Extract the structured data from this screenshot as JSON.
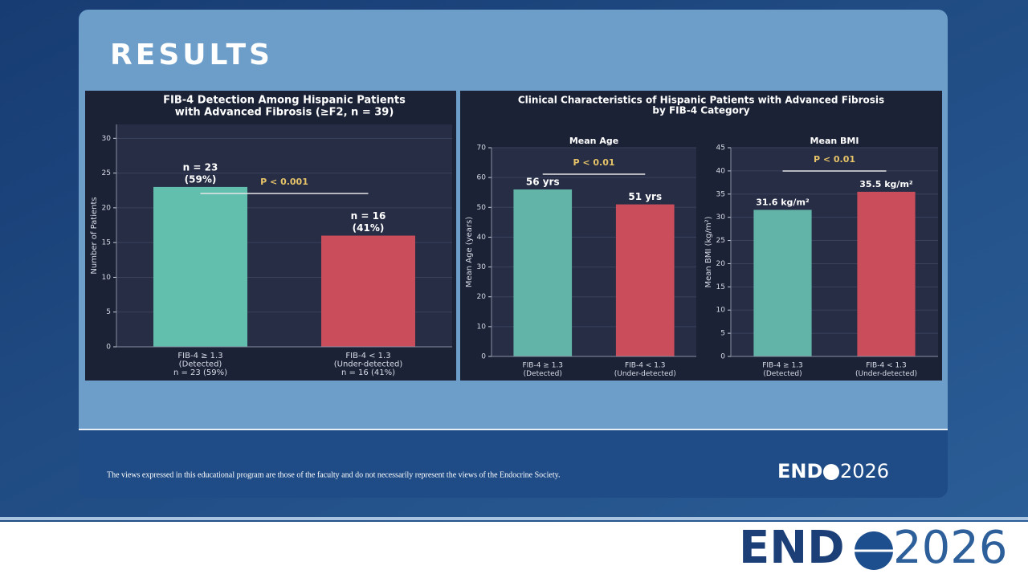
{
  "title": "RESULTS",
  "panel_title": [
    "Clinical Characteristics of Hispanic Patients with Advanced Fibrosis",
    "by FIB-4 Category"
  ],
  "disclaimer": "The views expressed in this educational program are those of the faculty and do not necessarily represent the views of the Endocrine Society.",
  "logo": {
    "left": "END",
    "right": "2026"
  },
  "chart_data": [
    {
      "type": "bar",
      "title": [
        "FIB-4 Detection Among Hispanic Patients",
        "with Advanced Fibrosis (≥F2, n = 39)"
      ],
      "categories": [
        [
          "FIB-4 ≥ 1.3",
          "(Detected)",
          "n = 23 (59%)"
        ],
        [
          "FIB-4 < 1.3",
          "(Under-detected)",
          "n = 16 (41%)"
        ]
      ],
      "values": [
        23,
        16
      ],
      "value_labels": [
        [
          "n = 23",
          "(59%)"
        ],
        [
          "n = 16",
          "(41%)"
        ]
      ],
      "colors": [
        "#62bfae",
        "#c94d5b"
      ],
      "ylabel": "Number of Patients",
      "ylim": [
        0,
        32
      ],
      "yticks": [
        0,
        5,
        10,
        15,
        20,
        25,
        30
      ],
      "grid": true,
      "annotation": "P < 0.001"
    },
    {
      "type": "bar",
      "title": [
        "Mean Age"
      ],
      "categories": [
        [
          "FIB-4 ≥ 1.3",
          "(Detected)"
        ],
        [
          "FIB-4 < 1.3",
          "(Under-detected)"
        ]
      ],
      "values": [
        56,
        51
      ],
      "value_labels": [
        [
          "56 yrs"
        ],
        [
          "51 yrs"
        ]
      ],
      "colors": [
        "#62b4a8",
        "#c94d5b"
      ],
      "ylabel": "Mean Age (years)",
      "ylim": [
        0,
        70
      ],
      "yticks": [
        0,
        10,
        20,
        30,
        40,
        50,
        60,
        70
      ],
      "grid": true,
      "annotation": "P < 0.01"
    },
    {
      "type": "bar",
      "title": [
        "Mean BMI"
      ],
      "categories": [
        [
          "FIB-4 ≥ 1.3",
          "(Detected)"
        ],
        [
          "FIB-4 < 1.3",
          "(Under-detected)"
        ]
      ],
      "values": [
        31.6,
        35.5
      ],
      "value_labels": [
        [
          "31.6 kg/m²"
        ],
        [
          "35.5 kg/m²"
        ]
      ],
      "colors": [
        "#62b4a8",
        "#c94d5b"
      ],
      "ylabel": "Mean BMI (kg/m²)",
      "ylim": [
        0,
        45
      ],
      "yticks": [
        0,
        5,
        10,
        15,
        20,
        25,
        30,
        35,
        40,
        45
      ],
      "grid": true,
      "annotation": "P < 0.01"
    }
  ]
}
